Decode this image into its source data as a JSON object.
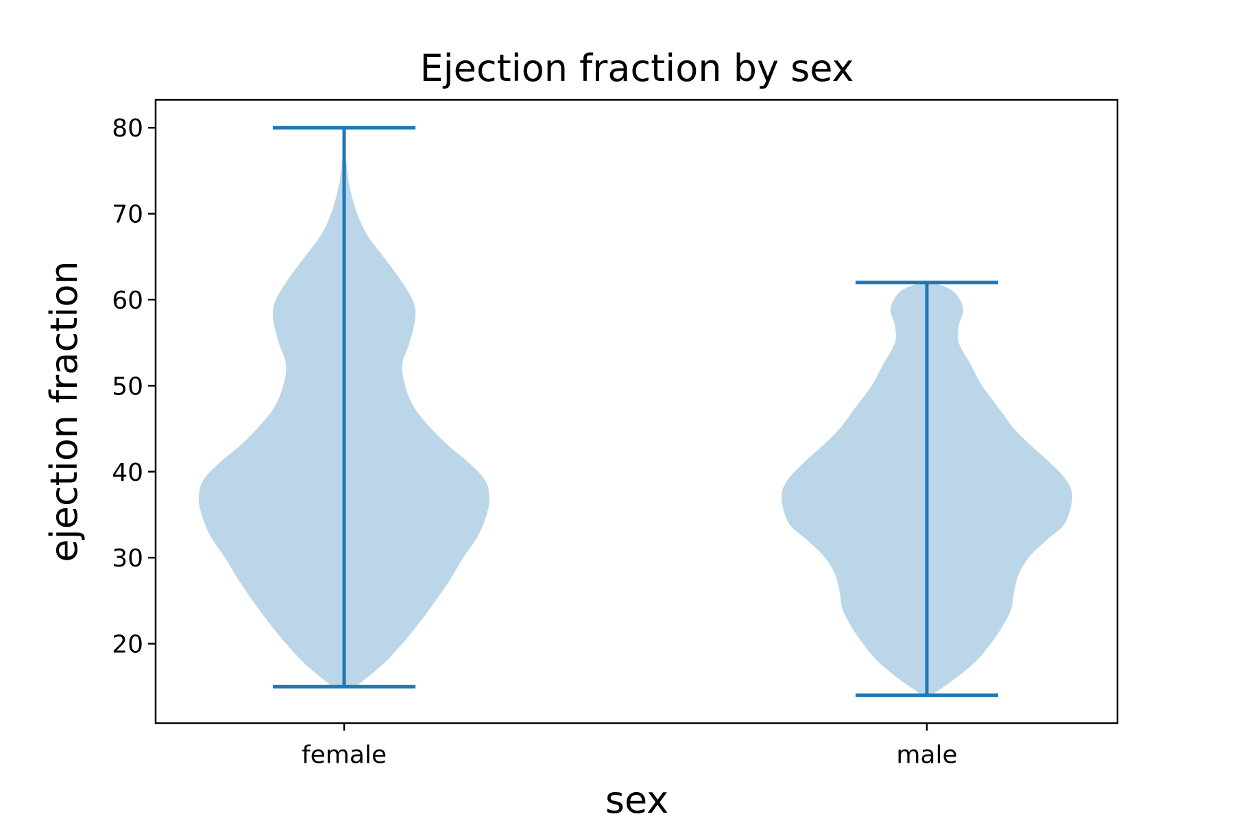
{
  "chart_data": {
    "type": "violin",
    "title": "Ejection fraction by sex",
    "xlabel": "sex",
    "ylabel": "ejection fraction",
    "categories": [
      "female",
      "male"
    ],
    "ylim": [
      10.75,
      83.25
    ],
    "yticks": [
      20,
      30,
      40,
      50,
      60,
      70,
      80
    ],
    "grid": false,
    "colors": {
      "body": "#1f77b4",
      "body_opacity": 0.3,
      "lines": "#1f77b4"
    },
    "violins": [
      {
        "category": "female",
        "min": 15,
        "max": 80,
        "density_profile": [
          [
            15,
            0.08
          ],
          [
            17.5,
            0.26
          ],
          [
            20,
            0.4
          ],
          [
            22.5,
            0.52
          ],
          [
            25,
            0.63
          ],
          [
            27.5,
            0.73
          ],
          [
            30,
            0.82
          ],
          [
            32.5,
            0.92
          ],
          [
            35,
            0.98
          ],
          [
            37,
            1.0
          ],
          [
            39,
            0.97
          ],
          [
            41,
            0.86
          ],
          [
            43,
            0.72
          ],
          [
            45,
            0.6
          ],
          [
            47.5,
            0.48
          ],
          [
            50,
            0.42
          ],
          [
            52.5,
            0.4
          ],
          [
            55,
            0.45
          ],
          [
            58,
            0.49
          ],
          [
            60,
            0.47
          ],
          [
            62.5,
            0.38
          ],
          [
            65,
            0.27
          ],
          [
            67.5,
            0.16
          ],
          [
            70,
            0.09
          ],
          [
            73,
            0.04
          ],
          [
            76,
            0.015
          ],
          [
            80,
            0.0
          ]
        ]
      },
      {
        "category": "male",
        "min": 14,
        "max": 62,
        "density_profile": [
          [
            14,
            0.03
          ],
          [
            16,
            0.2
          ],
          [
            18,
            0.34
          ],
          [
            20,
            0.44
          ],
          [
            22,
            0.52
          ],
          [
            24,
            0.58
          ],
          [
            26,
            0.6
          ],
          [
            28,
            0.63
          ],
          [
            30,
            0.7
          ],
          [
            32,
            0.82
          ],
          [
            34,
            0.95
          ],
          [
            37,
            1.0
          ],
          [
            39,
            0.96
          ],
          [
            41,
            0.85
          ],
          [
            43,
            0.72
          ],
          [
            45,
            0.6
          ],
          [
            47.5,
            0.49
          ],
          [
            50,
            0.38
          ],
          [
            52.5,
            0.3
          ],
          [
            55,
            0.22
          ],
          [
            57,
            0.22
          ],
          [
            59,
            0.25
          ],
          [
            61,
            0.18
          ],
          [
            62,
            0.04
          ]
        ]
      }
    ]
  }
}
